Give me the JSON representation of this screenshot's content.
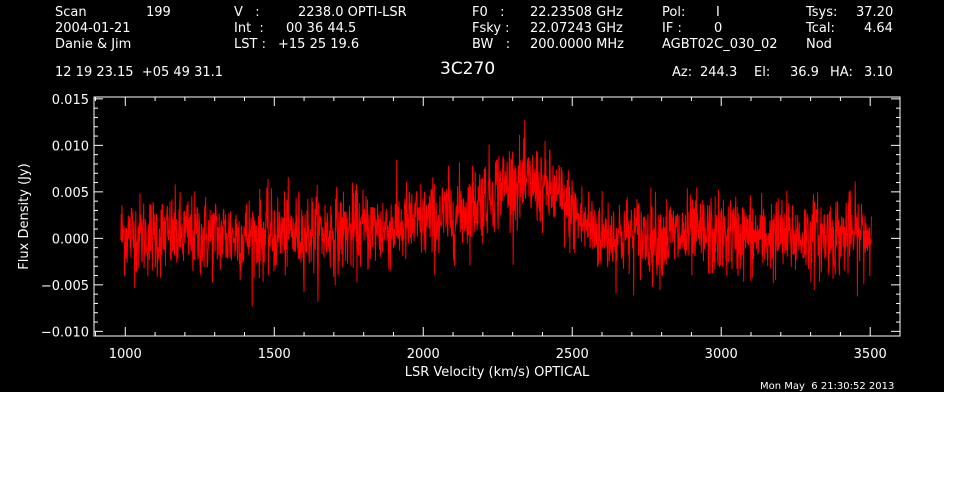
{
  "header": {
    "scan_label": "Scan",
    "scan_value": "199",
    "date": "2004-01-21",
    "observers": "Danie & Jim",
    "v_label": "V   :",
    "v_value": "2238.0 OPTI-LSR",
    "int_label": "Int  :",
    "int_value": "00 36 44.5",
    "lst_label": "LST :",
    "lst_value": "+15 25 19.6",
    "f0_label": "F0   :",
    "f0_value": "22.23508 GHz",
    "fsky_label": "Fsky :",
    "fsky_value": "22.07243 GHz",
    "bw_label": "BW   :",
    "bw_value": "200.0000 MHz",
    "pol_label": "Pol:",
    "pol_value": "I",
    "if_label": "IF :",
    "if_value": "0",
    "project": "AGBT02C_030_02",
    "tsys_label": "Tsys:",
    "tsys_value": "37.20",
    "tcal_label": "Tcal:",
    "tcal_value": "4.64",
    "mode": "Nod",
    "coords": "12 19 23.15  +05 49 31.1",
    "source": "3C270",
    "az_label": "Az:",
    "az_value": "244.3",
    "el_label": "El:",
    "el_value": "36.9",
    "ha_label": "HA:",
    "ha_value": "3.10"
  },
  "timestamp": "Mon May  6 21:30:52 2013",
  "colors": {
    "background": "#000000",
    "foreground": "#ffffff",
    "trace": "#ff0000"
  },
  "chart_data": {
    "type": "line",
    "title": "3C270",
    "xlabel": "LSR Velocity (km/s) OPTICAL",
    "ylabel": "Flux Density (Jy)",
    "xlim": [
      895,
      3600
    ],
    "ylim": [
      -0.0105,
      0.0152
    ],
    "x_ticks": [
      1000,
      1500,
      2000,
      2500,
      3000,
      3500
    ],
    "x_tick_labels": [
      "1000",
      "1500",
      "2000",
      "2500",
      "3000",
      "3500"
    ],
    "y_ticks": [
      -0.01,
      -0.005,
      0.0,
      0.005,
      0.01,
      0.015
    ],
    "y_tick_labels": [
      "−0.010",
      "−0.005",
      "0.000",
      "0.005",
      "0.010",
      "0.015"
    ],
    "grid": false,
    "legend": "none",
    "series": [
      {
        "x_range": [
          985,
          3505
        ],
        "profile_x": [
          985,
          1100,
          1400,
          1700,
          1900,
          2050,
          2150,
          2250,
          2300,
          2400,
          2450,
          2520,
          2600,
          2800,
          3000,
          3200,
          3505
        ],
        "profile_y": [
          0.0005,
          0.0003,
          0.0003,
          0.0007,
          0.0012,
          0.002,
          0.0032,
          0.0055,
          0.006,
          0.0055,
          0.0045,
          0.002,
          0.0004,
          0.0002,
          0.0003,
          0.0001,
          0.0004
        ],
        "noise_rms": 0.0022
      }
    ]
  }
}
